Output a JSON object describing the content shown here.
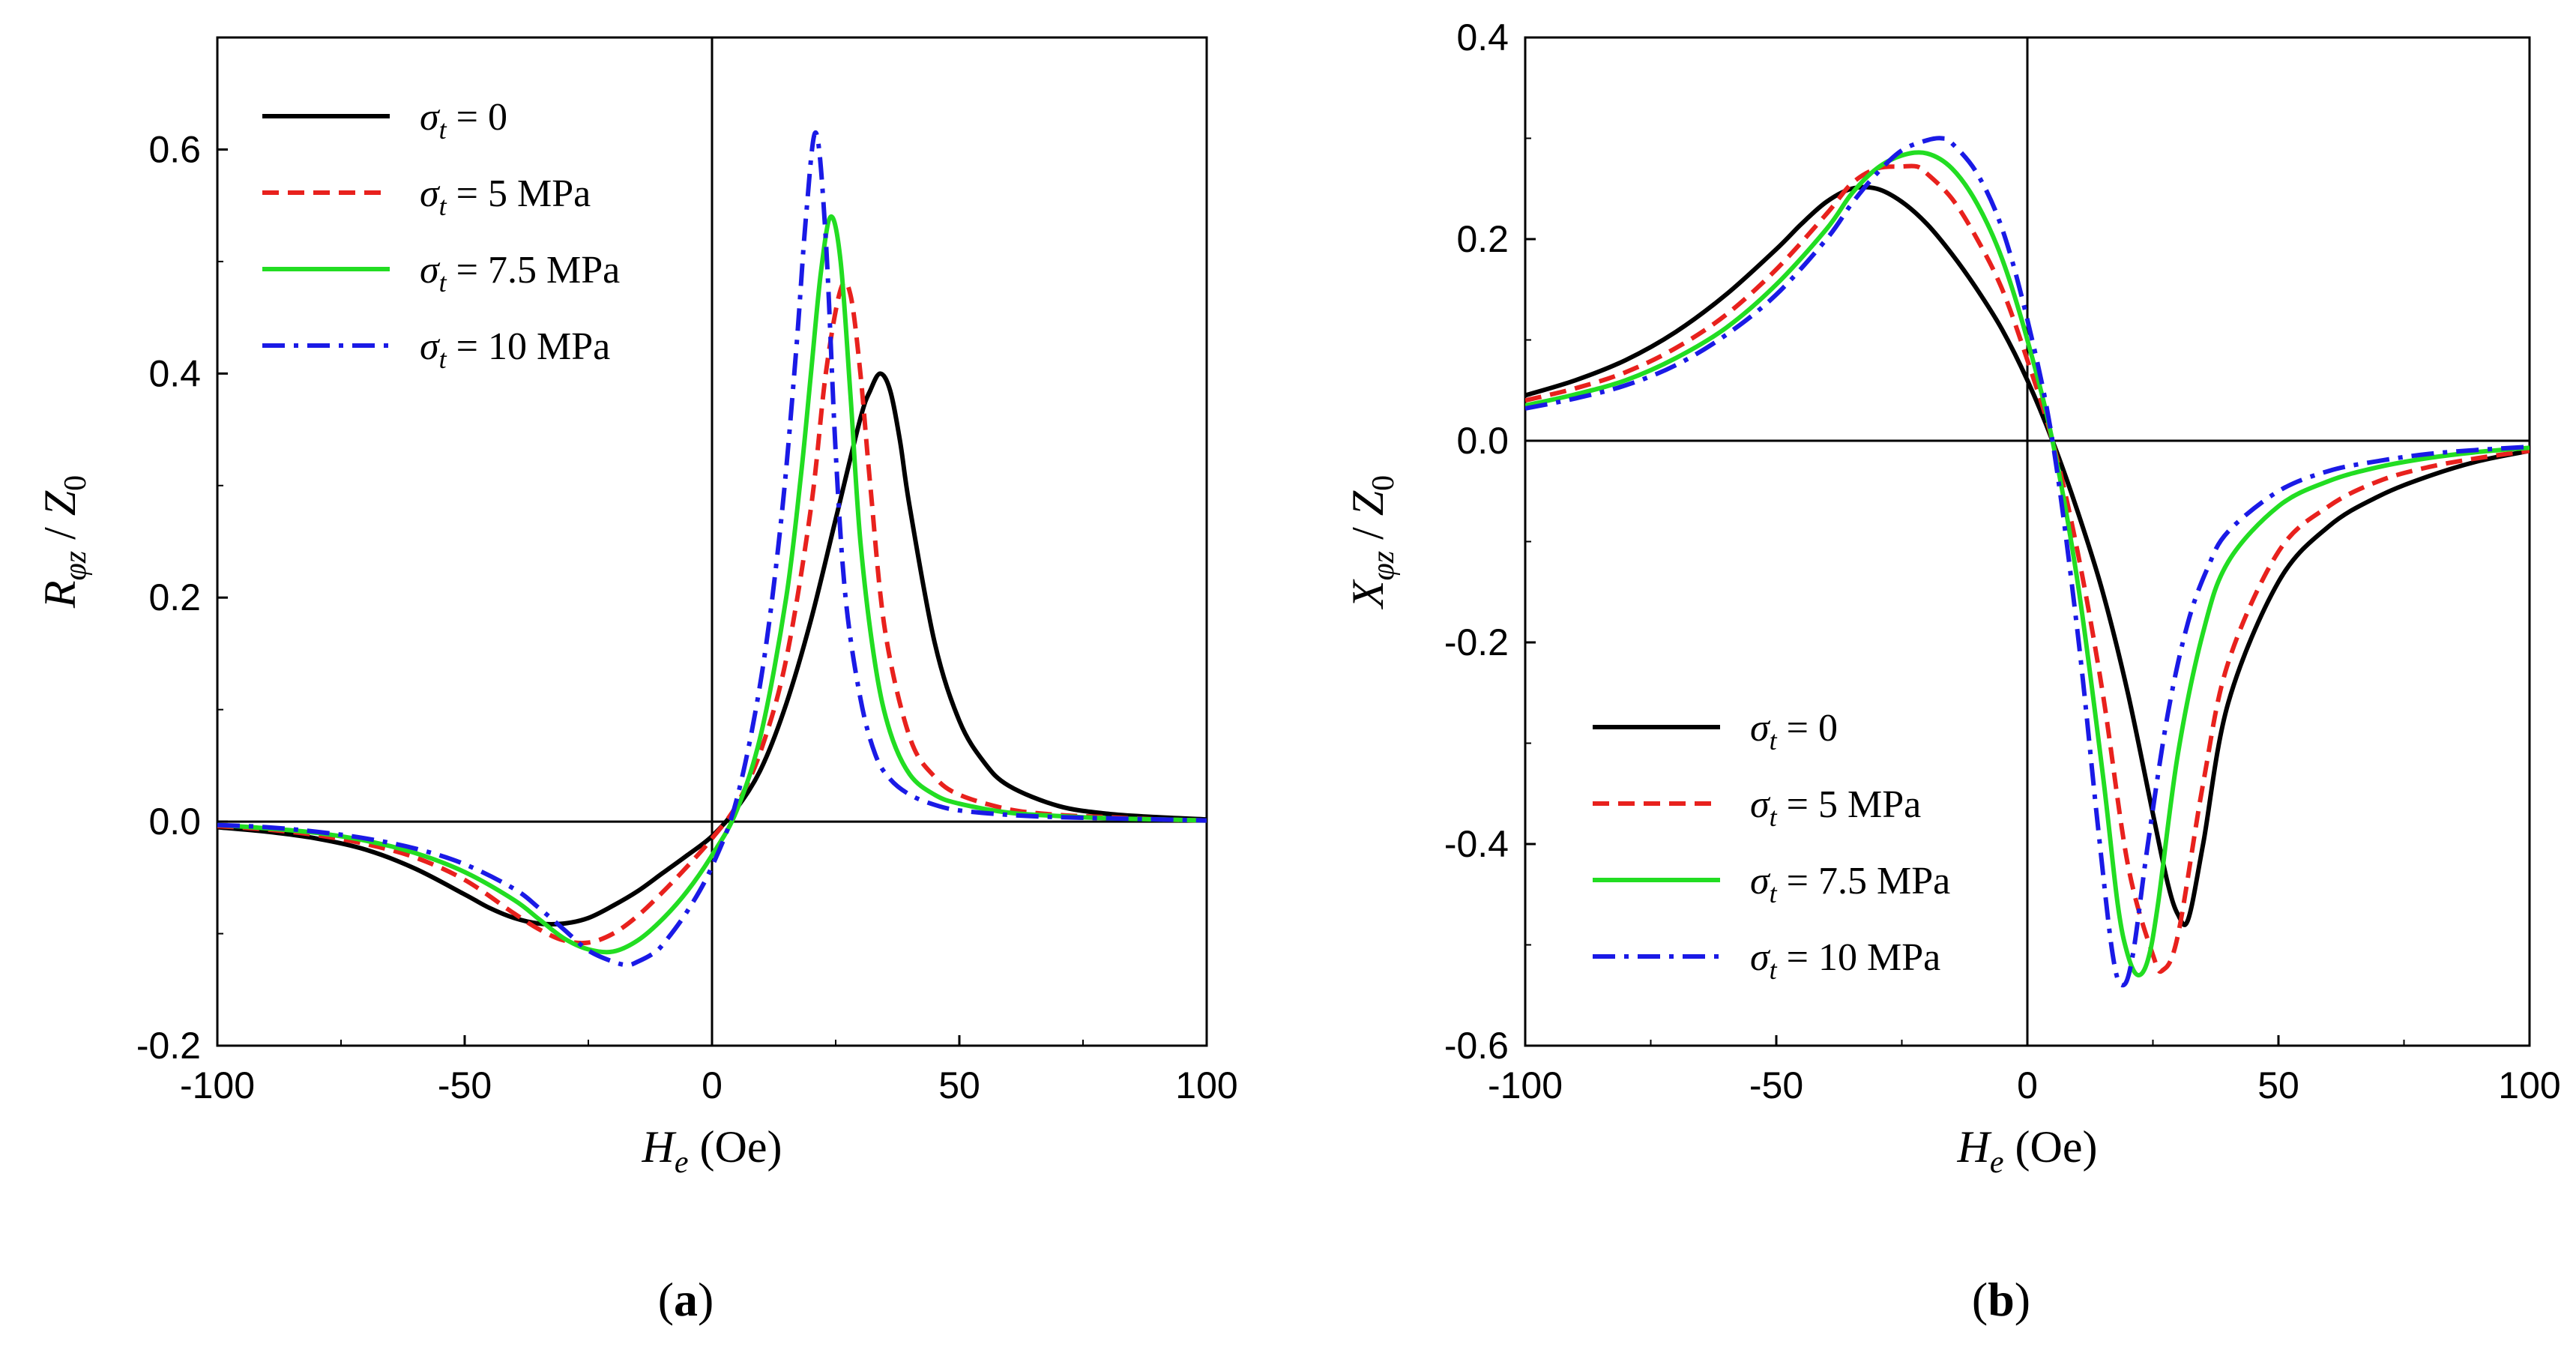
{
  "chart_data": [
    {
      "type": "line",
      "panel_label": "(a)",
      "panel_letter": "a",
      "xlabel": {
        "main": "H",
        "sub": "e",
        "unit": "(Oe)"
      },
      "ylabel": {
        "main": "R",
        "sub": "φz",
        "denom": "Z",
        "denom_sub": "0"
      },
      "xlim": [
        -100,
        100
      ],
      "ylim": [
        -0.2,
        0.7
      ],
      "xticks": [
        -100,
        -50,
        0,
        50,
        100
      ],
      "xtick_labels": [
        "-100",
        "-50",
        "0",
        "50",
        "100"
      ],
      "yticks": [
        -0.2,
        0.0,
        0.2,
        0.4,
        0.6
      ],
      "ytick_labels": [
        "-0.2",
        "0.0",
        "0.2",
        "0.4",
        "0.6"
      ],
      "legend_position": "top-left",
      "series": [
        {
          "name": "σt = 0",
          "label_sym": "σ",
          "label_sub": "t",
          "label_rest": " = 0",
          "color": "#000000",
          "dash": "solid",
          "x": [
            -100,
            -90,
            -80,
            -70,
            -60,
            -50,
            -45,
            -40,
            -35,
            -30,
            -25,
            -20,
            -15,
            -10,
            -5,
            0,
            5,
            10,
            15,
            20,
            25,
            30,
            32,
            34,
            36,
            38,
            40,
            45,
            50,
            55,
            60,
            70,
            80,
            90,
            100
          ],
          "y": [
            -0.005,
            -0.009,
            -0.015,
            -0.025,
            -0.042,
            -0.065,
            -0.077,
            -0.086,
            -0.091,
            -0.091,
            -0.086,
            -0.075,
            -0.062,
            -0.046,
            -0.03,
            -0.013,
            0.012,
            0.048,
            0.105,
            0.18,
            0.27,
            0.36,
            0.385,
            0.4,
            0.385,
            0.34,
            0.28,
            0.16,
            0.09,
            0.053,
            0.032,
            0.014,
            0.007,
            0.004,
            0.002
          ]
        },
        {
          "name": "σt = 5 MPa",
          "label_sym": "σ",
          "label_sub": "t",
          "label_rest": " = 5 MPa",
          "color": "#e8211d",
          "dash": "dashed",
          "x": [
            -100,
            -90,
            -80,
            -70,
            -60,
            -50,
            -40,
            -35,
            -30,
            -25,
            -20,
            -15,
            -10,
            -5,
            0,
            5,
            10,
            15,
            20,
            23,
            26,
            28,
            30,
            32,
            35,
            40,
            45,
            50,
            60,
            70,
            80,
            90,
            100
          ],
          "y": [
            -0.004,
            -0.007,
            -0.012,
            -0.02,
            -0.032,
            -0.052,
            -0.082,
            -0.096,
            -0.106,
            -0.108,
            -0.1,
            -0.084,
            -0.063,
            -0.04,
            -0.015,
            0.015,
            0.065,
            0.145,
            0.28,
            0.4,
            0.475,
            0.47,
            0.4,
            0.3,
            0.17,
            0.075,
            0.04,
            0.024,
            0.011,
            0.006,
            0.004,
            0.002,
            0.001
          ]
        },
        {
          "name": "σt = 7.5 MPa",
          "label_sym": "σ",
          "label_sub": "t",
          "label_rest": " = 7.5 MPa",
          "color": "#22dd22",
          "dash": "solid",
          "x": [
            -100,
            -90,
            -80,
            -70,
            -60,
            -50,
            -40,
            -35,
            -30,
            -25,
            -20,
            -15,
            -10,
            -5,
            0,
            5,
            10,
            15,
            18,
            20,
            22,
            24,
            26,
            28,
            30,
            33,
            36,
            40,
            45,
            50,
            60,
            70,
            80,
            90,
            100
          ],
          "y": [
            -0.003,
            -0.006,
            -0.01,
            -0.017,
            -0.028,
            -0.045,
            -0.07,
            -0.087,
            -0.104,
            -0.114,
            -0.116,
            -0.106,
            -0.087,
            -0.062,
            -0.03,
            0.01,
            0.08,
            0.2,
            0.31,
            0.4,
            0.49,
            0.54,
            0.5,
            0.38,
            0.25,
            0.14,
            0.08,
            0.042,
            0.024,
            0.016,
            0.008,
            0.005,
            0.003,
            0.002,
            0.001
          ]
        },
        {
          "name": "σt = 10 MPa",
          "label_sym": "σ",
          "label_sub": "t",
          "label_rest": " = 10 MPa",
          "color": "#1a1ae6",
          "dash": "dashdot",
          "x": [
            -100,
            -90,
            -80,
            -70,
            -60,
            -50,
            -40,
            -35,
            -30,
            -25,
            -20,
            -17,
            -15,
            -12,
            -10,
            -5,
            0,
            5,
            10,
            14,
            17,
            19,
            21,
            23,
            25,
            27,
            30,
            33,
            36,
            40,
            45,
            50,
            60,
            70,
            80,
            90,
            100
          ],
          "y": [
            -0.003,
            -0.005,
            -0.009,
            -0.015,
            -0.024,
            -0.038,
            -0.06,
            -0.077,
            -0.096,
            -0.115,
            -0.125,
            -0.128,
            -0.125,
            -0.118,
            -0.11,
            -0.08,
            -0.04,
            0.02,
            0.13,
            0.27,
            0.42,
            0.54,
            0.615,
            0.52,
            0.33,
            0.2,
            0.11,
            0.06,
            0.038,
            0.024,
            0.015,
            0.01,
            0.006,
            0.004,
            0.003,
            0.002,
            0.001
          ]
        }
      ]
    },
    {
      "type": "line",
      "panel_label": "(b)",
      "panel_letter": "b",
      "xlabel": {
        "main": "H",
        "sub": "e",
        "unit": "(Oe)"
      },
      "ylabel": {
        "main": "X",
        "sub": "φz",
        "denom": "Z",
        "denom_sub": "0"
      },
      "xlim": [
        -100,
        100
      ],
      "ylim": [
        -0.6,
        0.4
      ],
      "xticks": [
        -100,
        -50,
        0,
        50,
        100
      ],
      "xtick_labels": [
        "-100",
        "-50",
        "0",
        "50",
        "100"
      ],
      "yticks": [
        -0.6,
        -0.4,
        -0.2,
        0.0,
        0.2,
        0.4
      ],
      "ytick_labels": [
        "-0.6",
        "-0.4",
        "-0.2",
        "0.0",
        "0.2",
        "0.4"
      ],
      "legend_position": "bottom-left",
      "series": [
        {
          "name": "σt = 0",
          "label_sym": "σ",
          "label_sub": "t",
          "label_rest": " = 0",
          "color": "#000000",
          "dash": "solid",
          "x": [
            -100,
            -90,
            -80,
            -70,
            -60,
            -50,
            -45,
            -40,
            -35,
            -30,
            -25,
            -20,
            -15,
            -10,
            -5,
            0,
            5,
            10,
            15,
            20,
            25,
            28,
            30,
            32,
            35,
            40,
            50,
            60,
            70,
            80,
            90,
            100
          ],
          "y": [
            0.045,
            0.06,
            0.08,
            0.108,
            0.145,
            0.19,
            0.215,
            0.237,
            0.25,
            0.25,
            0.237,
            0.215,
            0.185,
            0.15,
            0.11,
            0.06,
            0.0,
            -0.07,
            -0.15,
            -0.25,
            -0.37,
            -0.44,
            -0.47,
            -0.475,
            -0.4,
            -0.26,
            -0.14,
            -0.085,
            -0.055,
            -0.035,
            -0.02,
            -0.01
          ]
        },
        {
          "name": "σt = 5 MPa",
          "label_sym": "σ",
          "label_sub": "t",
          "label_rest": " = 5 MPa",
          "color": "#e8211d",
          "dash": "dashed",
          "x": [
            -100,
            -90,
            -80,
            -70,
            -60,
            -50,
            -40,
            -35,
            -30,
            -25,
            -22,
            -20,
            -15,
            -10,
            -5,
            0,
            5,
            10,
            15,
            20,
            25,
            27,
            30,
            35,
            40,
            50,
            60,
            70,
            80,
            90,
            100
          ],
          "y": [
            0.04,
            0.052,
            0.068,
            0.092,
            0.125,
            0.17,
            0.225,
            0.255,
            0.27,
            0.272,
            0.272,
            0.265,
            0.24,
            0.2,
            0.15,
            0.08,
            0.0,
            -0.11,
            -0.25,
            -0.42,
            -0.51,
            -0.525,
            -0.49,
            -0.34,
            -0.22,
            -0.11,
            -0.065,
            -0.04,
            -0.026,
            -0.017,
            -0.01
          ]
        },
        {
          "name": "σt = 7.5 MPa",
          "label_sym": "σ",
          "label_sub": "t",
          "label_rest": " = 7.5 MPa",
          "color": "#22dd22",
          "dash": "solid",
          "x": [
            -100,
            -90,
            -80,
            -70,
            -60,
            -50,
            -40,
            -35,
            -30,
            -25,
            -20,
            -15,
            -10,
            -5,
            0,
            5,
            10,
            15,
            18,
            20,
            22,
            24,
            26,
            30,
            35,
            40,
            50,
            60,
            70,
            80,
            90,
            100
          ],
          "y": [
            0.035,
            0.046,
            0.06,
            0.082,
            0.112,
            0.155,
            0.21,
            0.245,
            0.27,
            0.283,
            0.285,
            0.27,
            0.235,
            0.18,
            0.1,
            0.0,
            -0.14,
            -0.33,
            -0.46,
            -0.51,
            -0.53,
            -0.515,
            -0.46,
            -0.31,
            -0.19,
            -0.12,
            -0.065,
            -0.04,
            -0.026,
            -0.017,
            -0.011,
            -0.007
          ]
        },
        {
          "name": "σt = 10 MPa",
          "label_sym": "σ",
          "label_sub": "t",
          "label_rest": " = 10 MPa",
          "color": "#1a1ae6",
          "dash": "dashdot",
          "x": [
            -100,
            -90,
            -80,
            -70,
            -60,
            -50,
            -40,
            -35,
            -30,
            -25,
            -20,
            -17,
            -15,
            -10,
            -5,
            0,
            5,
            10,
            14,
            17,
            19,
            21,
            24,
            28,
            32,
            36,
            40,
            50,
            60,
            70,
            80,
            90,
            100
          ],
          "y": [
            0.032,
            0.042,
            0.055,
            0.075,
            0.105,
            0.145,
            0.2,
            0.235,
            0.265,
            0.288,
            0.298,
            0.3,
            0.295,
            0.265,
            0.21,
            0.12,
            0.0,
            -0.19,
            -0.38,
            -0.51,
            -0.54,
            -0.51,
            -0.4,
            -0.27,
            -0.18,
            -0.125,
            -0.09,
            -0.05,
            -0.03,
            -0.02,
            -0.013,
            -0.009,
            -0.006
          ]
        }
      ]
    }
  ]
}
